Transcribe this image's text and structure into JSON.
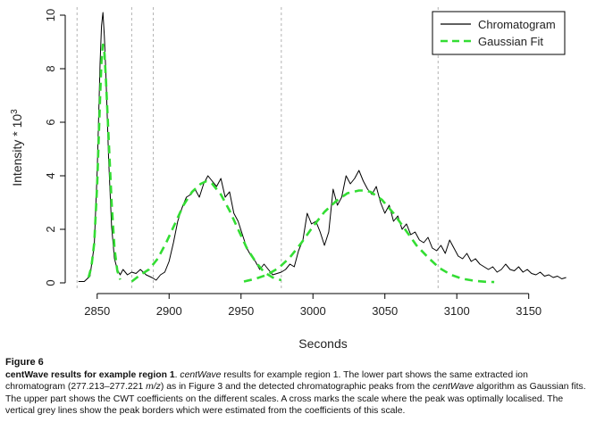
{
  "chart_data": {
    "type": "line",
    "xlabel": "Seconds",
    "ylabel": "Intensity * 10",
    "ylabel_exponent": "3",
    "xlim": [
      2834,
      3180
    ],
    "ylim": [
      -0.2,
      10.3
    ],
    "x_ticks": [
      2850,
      2900,
      2950,
      3000,
      3050,
      3100,
      3150
    ],
    "y_ticks": [
      0,
      2,
      4,
      6,
      8,
      10
    ],
    "legend_position": "top-right",
    "legend": [
      "Chromatogram",
      "Gaussian Fit"
    ],
    "colors": {
      "chromatogram": "#000000",
      "gaussian_fit": "#33dd33",
      "peak_border": "#b3b3b3"
    },
    "peak_borders": [
      2836,
      2874,
      2889,
      2978,
      3087
    ],
    "series": [
      {
        "name": "Chromatogram",
        "style": "solid",
        "x": [
          2837,
          2841,
          2845,
          2848,
          2850,
          2852,
          2853,
          2854,
          2855,
          2856,
          2858,
          2860,
          2862,
          2864,
          2866,
          2868,
          2871,
          2874,
          2877,
          2880,
          2884,
          2888,
          2891,
          2894,
          2897,
          2900,
          2903,
          2906,
          2909,
          2912,
          2915,
          2918,
          2921,
          2924,
          2927,
          2930,
          2933,
          2936,
          2939,
          2942,
          2945,
          2948,
          2951,
          2954,
          2957,
          2960,
          2963,
          2966,
          2969,
          2972,
          2975,
          2978,
          2981,
          2984,
          2987,
          2990,
          2993,
          2996,
          2999,
          3002,
          3005,
          3008,
          3011,
          3014,
          3017,
          3020,
          3023,
          3026,
          3029,
          3032,
          3035,
          3038,
          3041,
          3044,
          3047,
          3050,
          3053,
          3056,
          3059,
          3062,
          3065,
          3068,
          3071,
          3074,
          3077,
          3080,
          3083,
          3086,
          3089,
          3092,
          3095,
          3098,
          3101,
          3104,
          3107,
          3110,
          3113,
          3116,
          3119,
          3122,
          3125,
          3128,
          3131,
          3134,
          3137,
          3140,
          3143,
          3146,
          3149,
          3152,
          3155,
          3158,
          3161,
          3164,
          3167,
          3170,
          3173,
          3176
        ],
        "y": [
          0.05,
          0.05,
          0.25,
          1.4,
          4.2,
          8.2,
          9.6,
          10.1,
          9.2,
          7.9,
          4.6,
          2.1,
          0.9,
          0.5,
          0.3,
          0.5,
          0.3,
          0.4,
          0.35,
          0.5,
          0.3,
          0.2,
          0.1,
          0.3,
          0.4,
          0.8,
          1.5,
          2.3,
          2.8,
          3.2,
          3.3,
          3.5,
          3.2,
          3.7,
          4.0,
          3.8,
          3.6,
          3.9,
          3.2,
          3.4,
          2.6,
          2.3,
          1.8,
          1.3,
          1.0,
          0.8,
          0.5,
          0.7,
          0.5,
          0.3,
          0.35,
          0.4,
          0.5,
          0.7,
          0.6,
          1.2,
          1.6,
          2.6,
          2.2,
          2.3,
          1.9,
          1.4,
          1.9,
          3.5,
          2.9,
          3.2,
          4.0,
          3.7,
          3.9,
          4.2,
          3.8,
          3.5,
          3.3,
          3.6,
          3.0,
          2.6,
          2.9,
          2.3,
          2.5,
          2.0,
          2.2,
          1.8,
          1.9,
          1.6,
          1.5,
          1.7,
          1.3,
          1.2,
          1.4,
          1.1,
          1.6,
          1.3,
          1.0,
          0.9,
          1.1,
          0.8,
          0.9,
          0.7,
          0.6,
          0.5,
          0.6,
          0.4,
          0.5,
          0.7,
          0.5,
          0.45,
          0.6,
          0.4,
          0.5,
          0.35,
          0.3,
          0.4,
          0.25,
          0.3,
          0.2,
          0.25,
          0.15,
          0.2
        ]
      },
      {
        "name": "Gaussian Fit",
        "style": "dashed",
        "x": [
          2844,
          2846,
          2848,
          2850,
          2852,
          2853,
          2854,
          2855,
          2856,
          2858,
          2860,
          2862,
          2864,
          2866,
          2874,
          2880,
          2886,
          2892,
          2898,
          2904,
          2910,
          2916,
          2922,
          2926,
          2930,
          2936,
          2942,
          2948,
          2954,
          2960,
          2966,
          2972,
          2978,
          2952,
          2960,
          2968,
          2976,
          2984,
          2992,
          3000,
          3008,
          3016,
          3024,
          3032,
          3036,
          3040,
          3048,
          3056,
          3064,
          3072,
          3080,
          3088,
          3096,
          3104,
          3112,
          3120,
          3126
        ],
        "y": [
          0.2,
          0.6,
          1.5,
          3.7,
          6.9,
          8.3,
          8.9,
          8.6,
          7.7,
          5.4,
          3.0,
          1.3,
          0.45,
          0.12,
          0.05,
          0.3,
          0.5,
          0.9,
          1.5,
          2.2,
          2.9,
          3.4,
          3.7,
          3.8,
          3.7,
          3.3,
          2.7,
          2.0,
          1.3,
          0.8,
          0.4,
          0.2,
          0.1,
          0.05,
          0.15,
          0.3,
          0.55,
          0.95,
          1.5,
          2.1,
          2.65,
          3.05,
          3.35,
          3.45,
          3.45,
          3.4,
          3.1,
          2.6,
          2.0,
          1.4,
          0.95,
          0.55,
          0.3,
          0.15,
          0.08,
          0.04,
          0.03
        ],
        "segments": [
          [
            0,
            14
          ],
          [
            14,
            33
          ],
          [
            33,
            57
          ]
        ]
      }
    ]
  },
  "caption": {
    "figure_label": "Figure 6",
    "title": "centWave results for example region 1",
    "text_1": ". ",
    "italic_1": "centWave",
    "text_2": " results for example region 1. The lower part shows the same extracted ion chromatogram (277.213–277.221 ",
    "italic_2": "m/z",
    "text_3": ") as in Figure 3 and the detected chromatographic peaks from the ",
    "italic_3": "centWave",
    "text_4": " algorithm as Gaussian fits. The upper part shows the CWT coefficients on the different scales. A cross marks the scale where the peak was optimally localised. The vertical grey lines show the peak borders which were estimated from the coefficients of this scale."
  }
}
